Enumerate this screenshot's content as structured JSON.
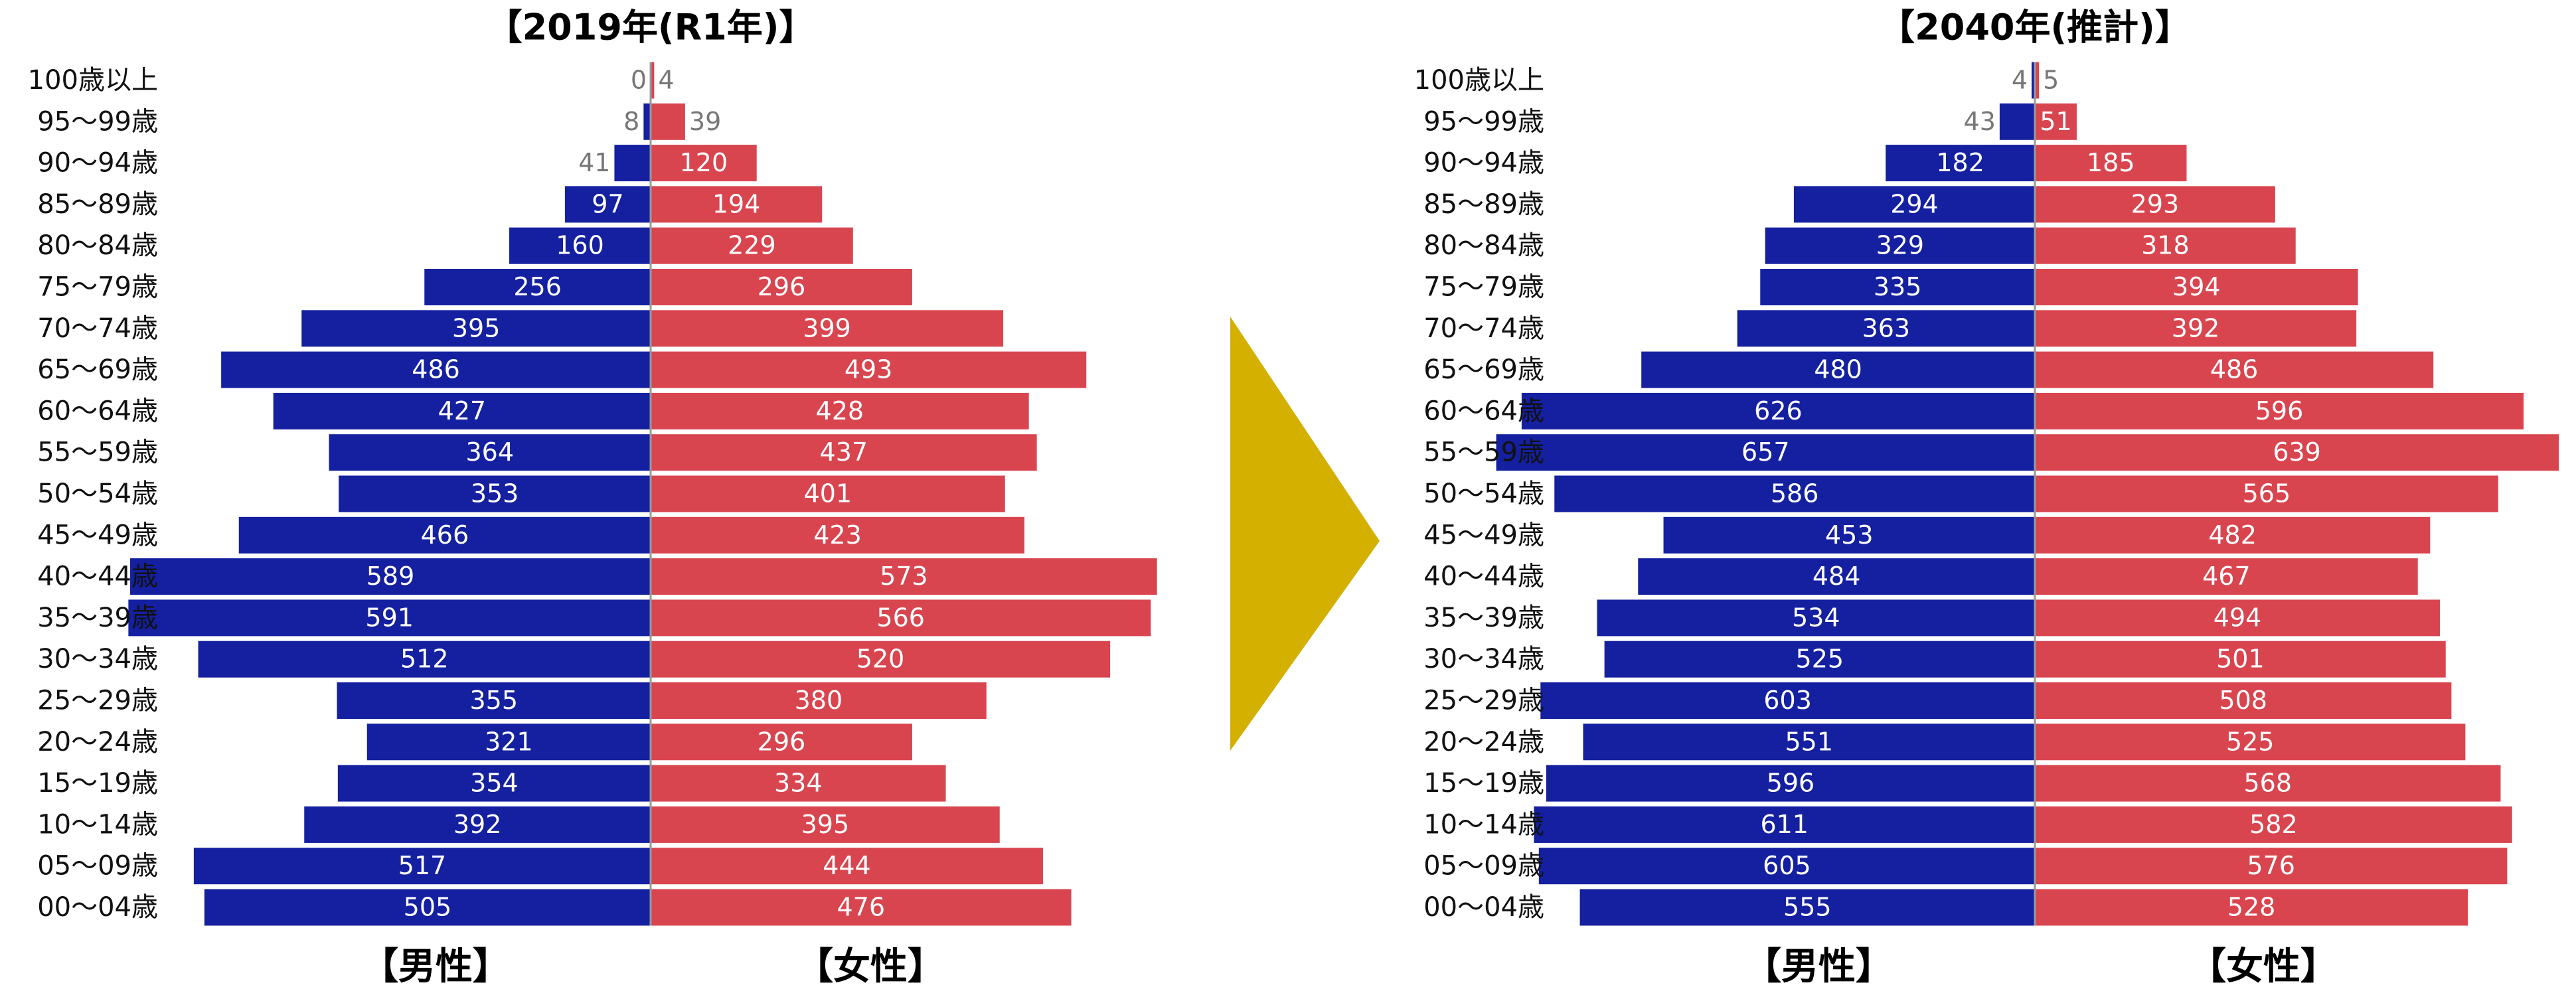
{
  "chart_data": [
    {
      "type": "bar",
      "title": "【2019年(R1年)】",
      "categories": [
        "100歳以上",
        "95～99歳",
        "90～94歳",
        "85～89歳",
        "80～84歳",
        "75～79歳",
        "70～74歳",
        "65～69歳",
        "60～64歳",
        "55～59歳",
        "50～54歳",
        "45～49歳",
        "40～44歳",
        "35～39歳",
        "30～34歳",
        "25～29歳",
        "20～24歳",
        "15～19歳",
        "10～14歳",
        "05～09歳",
        "00～04歳"
      ],
      "series": [
        {
          "name": "【男性】",
          "color": "#1420a0",
          "values": [
            0,
            8,
            41,
            97,
            160,
            256,
            395,
            486,
            427,
            364,
            353,
            466,
            589,
            591,
            512,
            355,
            321,
            354,
            392,
            517,
            505
          ]
        },
        {
          "name": "【女性】",
          "color": "#d9454f",
          "values": [
            4,
            39,
            120,
            194,
            229,
            296,
            399,
            493,
            428,
            437,
            401,
            423,
            573,
            566,
            520,
            380,
            296,
            334,
            395,
            444,
            476
          ]
        }
      ]
    },
    {
      "type": "bar",
      "title": "【2040年(推計)】",
      "categories": [
        "100歳以上",
        "95～99歳",
        "90～94歳",
        "85～89歳",
        "80～84歳",
        "75～79歳",
        "70～74歳",
        "65～69歳",
        "60～64歳",
        "55～59歳",
        "50～54歳",
        "45～49歳",
        "40～44歳",
        "35～39歳",
        "30～34歳",
        "25～29歳",
        "20～24歳",
        "15～19歳",
        "10～14歳",
        "05～09歳",
        "00～04歳"
      ],
      "series": [
        {
          "name": "【男性】",
          "color": "#1420a0",
          "values": [
            4,
            43,
            182,
            294,
            329,
            335,
            363,
            480,
            626,
            657,
            586,
            453,
            484,
            534,
            525,
            603,
            551,
            596,
            611,
            605,
            555
          ]
        },
        {
          "name": "【女性】",
          "color": "#d9454f",
          "values": [
            5,
            51,
            185,
            293,
            318,
            394,
            392,
            486,
            596,
            639,
            565,
            482,
            467,
            494,
            501,
            508,
            525,
            568,
            582,
            576,
            528
          ]
        }
      ]
    }
  ]
}
